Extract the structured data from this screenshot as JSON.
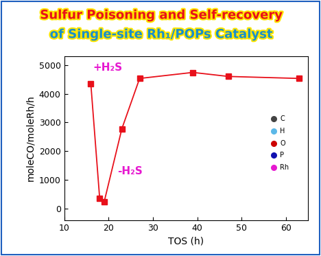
{
  "chart_data": {
    "type": "line",
    "title": [
      "Sulfur Poisoning and Self-recovery",
      "of Single-site Rh₁/POPs Catalyst"
    ],
    "x_label": "TOS (h)",
    "y_label": "moleCO/moleRh/h",
    "x": [
      16,
      18,
      19,
      23,
      27,
      39,
      47,
      63
    ],
    "values": [
      4350,
      350,
      230,
      2780,
      4530,
      4740,
      4600,
      4530
    ],
    "color": "#e8101a",
    "marker": "square",
    "line_style": "solid",
    "xlim": [
      10,
      65
    ],
    "xticks": [
      10,
      20,
      30,
      40,
      50,
      60
    ],
    "ylim": [
      -400,
      5300
    ],
    "yticks": [
      0,
      1000,
      2000,
      3000,
      4000,
      5000
    ],
    "annotations": [
      {
        "text": "+H₂S",
        "x": 16.5,
        "y": 4900
      },
      {
        "text": "-H₂S",
        "x": 22,
        "y": 1300
      }
    ],
    "atom_labels": [
      "C",
      "H",
      "O",
      "P",
      "Rh"
    ]
  }
}
